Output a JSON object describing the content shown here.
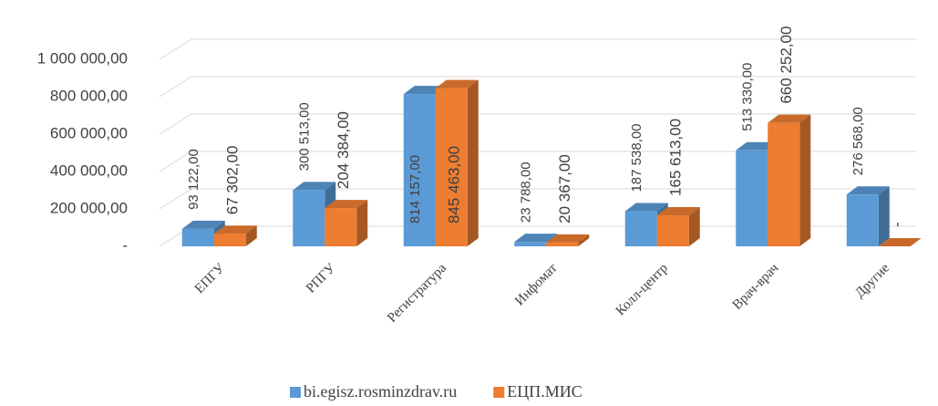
{
  "chart_data": {
    "type": "bar3d",
    "categories": [
      "ЕПГУ",
      "РПГУ",
      "Регистратура",
      "Инфомат",
      "Колл-центр",
      "Врач-врач",
      "Другие"
    ],
    "series": [
      {
        "name": "bi.egisz.rosminzdrav.ru",
        "color": "#5b9bd5",
        "values": [
          93122,
          300513,
          814157,
          23788,
          187538,
          513330,
          276568
        ],
        "value_labels": [
          "93 122,00",
          "300 513,00",
          "814 157,00",
          "23 788,00",
          "187 538,00",
          "513 330,00",
          "276 568,00"
        ]
      },
      {
        "name": "ЕЦП.МИС",
        "color": "#ed7d31",
        "values": [
          67302,
          204384,
          845463,
          20367,
          165613,
          660252,
          0
        ],
        "value_labels": [
          "67 302,00",
          "204 384,00",
          "845 463,00",
          "20 367,00",
          "165 613,00",
          "660 252,00",
          "-"
        ]
      }
    ],
    "ylim": [
      0,
      1000000
    ],
    "yticks": [
      {
        "value": 0,
        "label": "-"
      },
      {
        "value": 200000,
        "label": "200 000,00"
      },
      {
        "value": 400000,
        "label": "400 000,00"
      },
      {
        "value": 600000,
        "label": "600 000,00"
      },
      {
        "value": 800000,
        "label": "800 000,00"
      },
      {
        "value": 1000000,
        "label": "1 000 000,00"
      }
    ],
    "grid": true,
    "legend": "bottom"
  }
}
